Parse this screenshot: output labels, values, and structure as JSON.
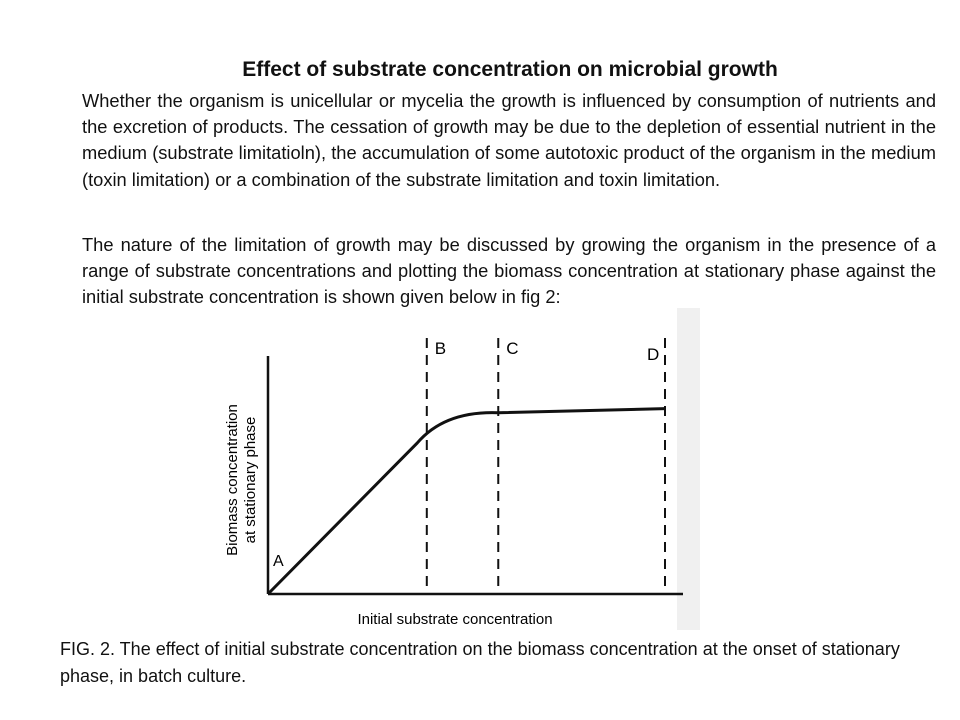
{
  "title": "Effect of substrate concentration on microbial growth",
  "paragraphs": [
    "Whether the organism is unicellular or mycelia the  growth is influenced by consumption of nutrients and the excretion of products. The cessation of growth may be due to the depletion of essential nutrient in the medium (substrate limitatioln),  the accumulation of some autotoxic product of the organism in the medium (toxin limitation) or a combination of the substrate limitation and toxin limitation.",
    "The nature of the limitation of growth may be discussed by growing the organism in the presence of a range of  substrate concentrations and plotting the biomass concentration at stationary phase against the initial substrate concentration is shown given  below in fig 2:"
  ],
  "figure": {
    "ylabel_line1": "Biomass concentration",
    "ylabel_line2": "at stationary phase",
    "xlabel": "Initial substrate concentration",
    "point_labels": {
      "A": "A",
      "B": "B",
      "C": "C",
      "D": "D"
    }
  },
  "chart_data": {
    "type": "line",
    "xlabel": "Initial substrate concentration",
    "ylabel": "Biomass concentration at stationary phase",
    "grid": false,
    "legend": "none",
    "series": [
      {
        "x": [
          0,
          0.4,
          0.58,
          1.0
        ],
        "y": [
          0,
          0.78,
          0.88,
          0.9
        ]
      }
    ],
    "markers": [
      {
        "label": "B",
        "x": 0.4
      },
      {
        "label": "C",
        "x": 0.58
      },
      {
        "label": "D",
        "x": 1.0
      }
    ],
    "annotations": [
      {
        "label": "A",
        "x": 0,
        "y": 0
      }
    ]
  },
  "caption": "FIG. 2. The effect of initial substrate concentration on the biomass concentration at the onset of stationary phase, in batch culture."
}
